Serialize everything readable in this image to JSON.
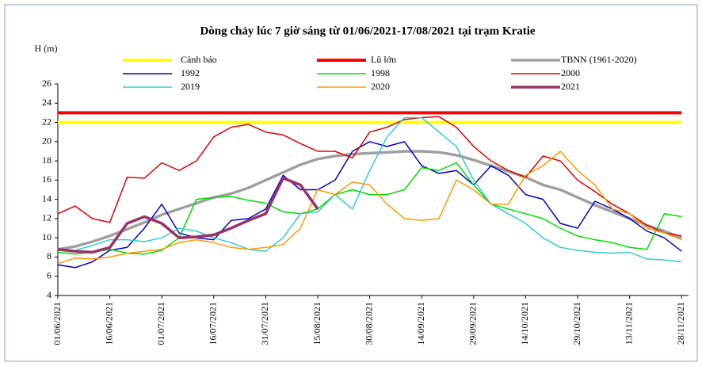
{
  "chart_data": {
    "type": "line",
    "title": "Dòng chảy lúc 7 giờ sáng từ 01/06/2021-17/08/2021 tại trạm Kratie",
    "y_label": "H (m)",
    "x": [
      0,
      5,
      10,
      15,
      20,
      25,
      30,
      35,
      40,
      45,
      50,
      55,
      60,
      65,
      70,
      75,
      80,
      85,
      90,
      95,
      100,
      105,
      110,
      115,
      120,
      125,
      130,
      135,
      140,
      145,
      150,
      155,
      160,
      165,
      170,
      175,
      180
    ],
    "xlim": [
      0,
      182
    ],
    "xticks": [
      {
        "value": 0,
        "label": "01/06/2021"
      },
      {
        "value": 15,
        "label": "16/06/2021"
      },
      {
        "value": 30,
        "label": "01/07/2021"
      },
      {
        "value": 45,
        "label": "16/07/2021"
      },
      {
        "value": 60,
        "label": "31/07/2021"
      },
      {
        "value": 75,
        "label": "15/08/2021"
      },
      {
        "value": 90,
        "label": "30/08/2021"
      },
      {
        "value": 105,
        "label": "14/09/2021"
      },
      {
        "value": 120,
        "label": "29/09/2021"
      },
      {
        "value": 135,
        "label": "14/10/2021"
      },
      {
        "value": 150,
        "label": "29/10/2021"
      },
      {
        "value": 165,
        "label": "13/11/2021"
      },
      {
        "value": 180,
        "label": "28/11/2021"
      }
    ],
    "ylim": [
      4,
      26
    ],
    "yticks": [
      4,
      6,
      8,
      10,
      12,
      14,
      16,
      18,
      20,
      22,
      24,
      26
    ],
    "series": [
      {
        "name": "Cảnh báo",
        "color": "#ffff00",
        "width": 4,
        "values": [
          22,
          22,
          22,
          22,
          22,
          22,
          22,
          22,
          22,
          22,
          22,
          22,
          22,
          22,
          22,
          22,
          22,
          22,
          22,
          22,
          22,
          22,
          22,
          22,
          22,
          22,
          22,
          22,
          22,
          22,
          22,
          22,
          22,
          22,
          22,
          22,
          22
        ]
      },
      {
        "name": "Lũ lớn",
        "color": "#ff0000",
        "width": 4,
        "values": [
          23,
          23,
          23,
          23,
          23,
          23,
          23,
          23,
          23,
          23,
          23,
          23,
          23,
          23,
          23,
          23,
          23,
          23,
          23,
          23,
          23,
          23,
          23,
          23,
          23,
          23,
          23,
          23,
          23,
          23,
          23,
          23,
          23,
          23,
          23,
          23,
          23
        ]
      },
      {
        "name": "TBNN (1961-2020)",
        "color": "#a0a0a0",
        "width": 3.5,
        "values": [
          8.8,
          9.1,
          9.6,
          10.2,
          10.9,
          11.6,
          12.4,
          13.0,
          13.6,
          14.2,
          14.6,
          15.2,
          16.0,
          16.8,
          17.6,
          18.2,
          18.5,
          18.7,
          18.8,
          18.9,
          19.0,
          19.0,
          18.9,
          18.6,
          18.1,
          17.5,
          16.9,
          16.3,
          15.5,
          15.0,
          14.2,
          13.4,
          12.7,
          12.0,
          11.3,
          10.7,
          10.0
        ]
      },
      {
        "name": "1992",
        "color": "#0000cc",
        "width": 1.5,
        "values": [
          7.2,
          6.9,
          7.5,
          8.7,
          9.0,
          11.0,
          13.5,
          10.5,
          10.0,
          9.8,
          11.8,
          12.0,
          13.0,
          16.5,
          15.0,
          15.0,
          16.0,
          19.0,
          20.0,
          19.5,
          20.0,
          17.5,
          16.7,
          17.0,
          15.5,
          17.5,
          16.5,
          14.5,
          14.0,
          11.5,
          11.0,
          13.8,
          13.0,
          12.0,
          10.7,
          10.0,
          8.6
        ]
      },
      {
        "name": "1998",
        "color": "#00dd00",
        "width": 1.5,
        "values": [
          8.5,
          8.3,
          8.5,
          8.8,
          8.4,
          8.3,
          8.7,
          10.0,
          14.0,
          14.2,
          14.3,
          13.9,
          13.6,
          12.7,
          12.5,
          13.0,
          14.5,
          15.0,
          14.5,
          14.5,
          15.0,
          17.3,
          17.0,
          17.8,
          15.5,
          13.5,
          13.0,
          12.5,
          12.0,
          11.0,
          10.2,
          9.8,
          9.5,
          9.0,
          8.8,
          12.5,
          12.2
        ]
      },
      {
        "name": "2000",
        "color": "#e00000",
        "width": 1.5,
        "values": [
          12.5,
          13.3,
          12.0,
          11.6,
          16.3,
          16.2,
          17.8,
          17.0,
          18.0,
          20.5,
          21.5,
          21.8,
          21.0,
          20.7,
          19.8,
          19.0,
          19.0,
          18.3,
          21.0,
          21.5,
          22.3,
          22.5,
          22.6,
          21.5,
          19.5,
          18.0,
          17.0,
          16.3,
          18.5,
          18.0,
          16.0,
          14.8,
          13.5,
          12.5,
          11.3,
          10.5,
          10.2
        ]
      },
      {
        "name": "2019",
        "color": "#33cccc",
        "width": 1.5,
        "values": [
          8.7,
          8.7,
          9.2,
          9.8,
          9.8,
          9.6,
          10.0,
          11.0,
          10.7,
          10.0,
          9.5,
          8.8,
          8.6,
          10.0,
          12.5,
          12.7,
          14.5,
          13.0,
          17.0,
          20.5,
          22.5,
          22.5,
          21.0,
          19.5,
          16.0,
          13.5,
          12.5,
          11.5,
          10.0,
          9.0,
          8.7,
          8.5,
          8.4,
          8.5,
          7.8,
          7.7,
          7.5
        ]
      },
      {
        "name": "2020",
        "color": "#ff9900",
        "width": 1.5,
        "values": [
          7.3,
          7.9,
          7.8,
          8.0,
          8.4,
          8.6,
          8.8,
          9.5,
          9.8,
          9.5,
          9.0,
          8.8,
          9.0,
          9.3,
          11.0,
          15.0,
          14.5,
          15.8,
          15.5,
          13.5,
          12.0,
          11.8,
          12.0,
          16.0,
          15.0,
          13.5,
          13.5,
          16.5,
          17.5,
          19.0,
          17.0,
          15.5,
          13.0,
          12.5,
          11.0,
          10.5,
          9.8
        ]
      },
      {
        "name": "2021",
        "color": "#993366",
        "width": 3.5,
        "values": [
          8.8,
          8.6,
          8.5,
          9.0,
          11.5,
          12.2,
          11.5,
          10.0,
          10.1,
          10.3,
          11.0,
          11.8,
          12.5,
          16.2,
          15.5,
          13.0,
          null,
          null,
          null,
          null,
          null,
          null,
          null,
          null,
          null,
          null,
          null,
          null,
          null,
          null,
          null,
          null,
          null,
          null,
          null,
          null,
          null
        ]
      }
    ]
  }
}
